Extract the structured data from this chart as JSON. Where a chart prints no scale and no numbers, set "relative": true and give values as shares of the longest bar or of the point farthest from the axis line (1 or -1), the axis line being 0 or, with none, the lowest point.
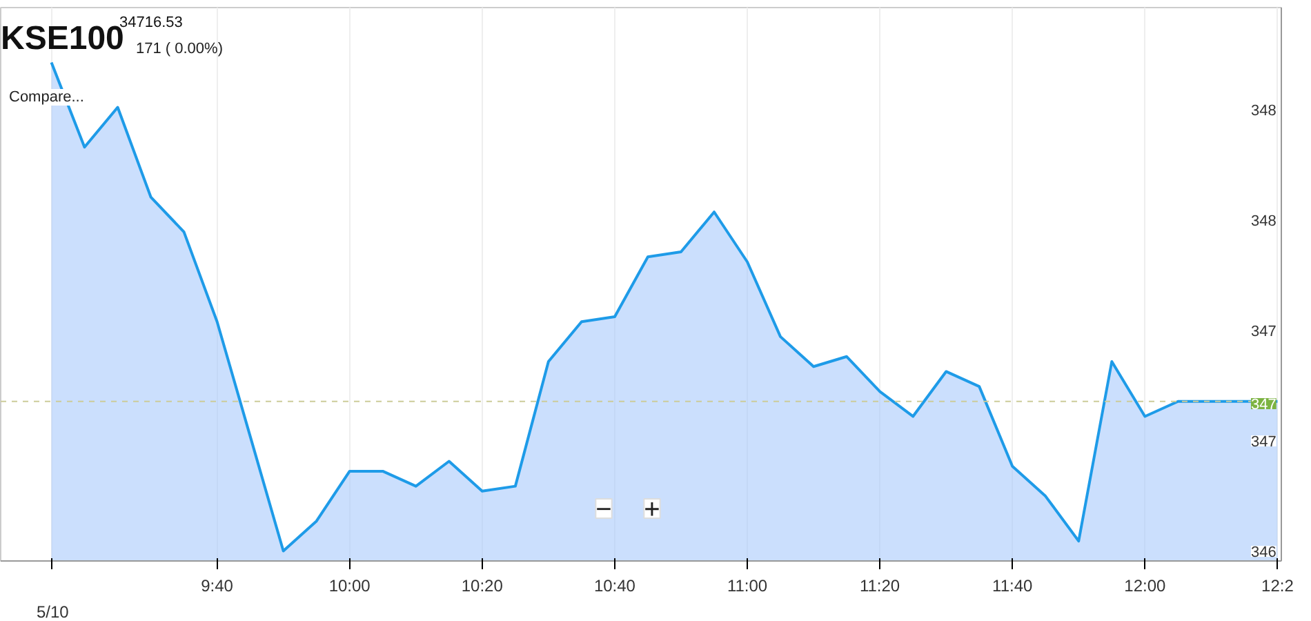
{
  "chart_data": {
    "type": "area",
    "title": "KSE100",
    "subtitle": "34716.53",
    "relative": true,
    "annotations": [
      "171 ( 0.00%)",
      "Compare...",
      "−",
      "+",
      "348",
      "348",
      "347",
      "347",
      "346",
      "347",
      "5/10"
    ],
    "x": [
      9.25,
      9.3333,
      9.4167,
      9.5,
      9.5833,
      9.6667,
      9.75,
      9.8333,
      9.9167,
      10.0,
      10.0833,
      10.1667,
      10.25,
      10.3333,
      10.4167,
      10.5,
      10.5833,
      10.6667,
      10.75,
      10.8333,
      10.9167,
      11.0,
      11.0833,
      11.1667,
      11.25,
      11.3333,
      11.4167,
      11.5,
      11.5833,
      11.6667,
      11.75,
      11.8333,
      11.9167,
      12.0,
      12.0833,
      12.1667,
      12.25,
      12.3333
    ],
    "series": [
      {
        "color": "#1e9be8",
        "values": [
          1.0,
          0.83,
          0.91,
          0.73,
          0.66,
          0.48,
          0.25,
          0.02,
          0.08,
          0.18,
          0.18,
          0.15,
          0.2,
          0.14,
          0.15,
          0.4,
          0.48,
          0.49,
          0.61,
          0.62,
          0.7,
          0.6,
          0.45,
          0.39,
          0.41,
          0.34,
          0.29,
          0.38,
          0.35,
          0.19,
          0.13,
          0.04,
          0.4,
          0.29,
          0.32,
          0.32,
          0.32,
          0.32
        ]
      }
    ],
    "xlim": [
      9.1225,
      12.343
    ],
    "xticks": [
      {
        "value": 9.25,
        "label": null
      },
      {
        "value": 9.6667,
        "label": "9:40"
      },
      {
        "value": 10,
        "label": "10:00"
      },
      {
        "value": 10.3333,
        "label": "10:20"
      },
      {
        "value": 10.6667,
        "label": "10:40"
      },
      {
        "value": 11,
        "label": "11:00"
      },
      {
        "value": 11.3333,
        "label": "11:20"
      },
      {
        "value": 11.6667,
        "label": "11:40"
      },
      {
        "value": 12,
        "label": "12:00"
      },
      {
        "value": 12.3333,
        "label": "12:2"
      }
    ],
    "ref_lines": [
      {
        "axis": "y",
        "value": 0.32,
        "color": "#cccc99",
        "line_style": "dashed"
      }
    ],
    "grid": "x",
    "marker": "none",
    "line_style": "solid"
  }
}
